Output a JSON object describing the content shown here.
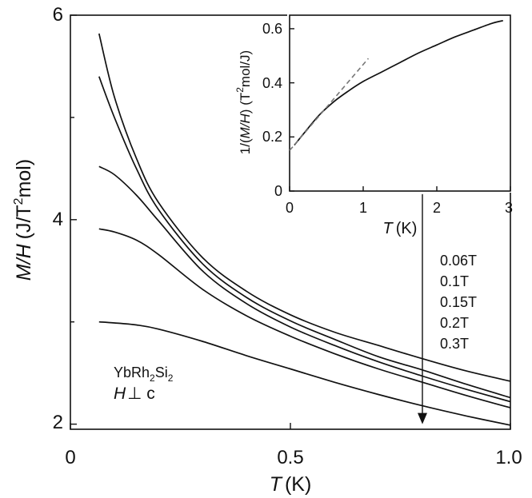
{
  "chart_data": [
    {
      "type": "line",
      "name": "main",
      "xlabel_italic": "T",
      "xlabel_unit": "(K)",
      "ylabel_italic": "M/H",
      "ylabel_unit_pre": "(J/T",
      "ylabel_sup": "2",
      "ylabel_unit_post": "mol)",
      "xlim": [
        0,
        1.0
      ],
      "ylim": [
        1.95,
        6.0
      ],
      "x_ticks": [
        0,
        0.5,
        1.0
      ],
      "x_tick_labels": [
        "0",
        "0.5",
        "1.0"
      ],
      "y_ticks": [
        2,
        4,
        6
      ],
      "y_tick_labels": [
        "2",
        "4",
        "6"
      ],
      "y_minor_ticks": [
        3,
        5
      ],
      "legend": [
        "0.06T",
        "0.1T",
        "0.15T",
        "0.2T",
        "0.3T"
      ],
      "annotation_compound": {
        "pre": "YbRh",
        "sub1": "2",
        "mid": "Si",
        "sub2": "2"
      },
      "annotation_field": {
        "italic": "H",
        "symbol": "⊥",
        "rest": " c"
      },
      "arrow": {
        "x": 0.8,
        "y_from": 4.25,
        "y_to": 2.0
      },
      "series": [
        {
          "name": "0.06T",
          "x": [
            0.065,
            0.1,
            0.15,
            0.2,
            0.3,
            0.4,
            0.5,
            0.6,
            0.7,
            0.8,
            0.9,
            1.0
          ],
          "y": [
            5.82,
            5.2,
            4.6,
            4.17,
            3.63,
            3.3,
            3.07,
            2.9,
            2.77,
            2.64,
            2.52,
            2.42
          ]
        },
        {
          "name": "0.1T",
          "x": [
            0.065,
            0.1,
            0.15,
            0.2,
            0.3,
            0.4,
            0.5,
            0.6,
            0.7,
            0.8,
            0.9,
            1.0
          ],
          "y": [
            5.4,
            5.0,
            4.5,
            4.1,
            3.57,
            3.24,
            3.01,
            2.83,
            2.66,
            2.53,
            2.39,
            2.26
          ]
        },
        {
          "name": "0.15T",
          "x": [
            0.065,
            0.1,
            0.15,
            0.2,
            0.3,
            0.4,
            0.5,
            0.6,
            0.7,
            0.8,
            0.9,
            1.0
          ],
          "y": [
            4.52,
            4.44,
            4.24,
            3.99,
            3.5,
            3.18,
            2.95,
            2.77,
            2.61,
            2.47,
            2.34,
            2.22
          ]
        },
        {
          "name": "0.2T",
          "x": [
            0.065,
            0.1,
            0.15,
            0.2,
            0.3,
            0.4,
            0.5,
            0.6,
            0.7,
            0.8,
            0.9,
            1.0
          ],
          "y": [
            3.91,
            3.88,
            3.8,
            3.66,
            3.32,
            3.06,
            2.86,
            2.69,
            2.54,
            2.41,
            2.28,
            2.16
          ]
        },
        {
          "name": "0.3T",
          "x": [
            0.065,
            0.1,
            0.15,
            0.2,
            0.3,
            0.4,
            0.5,
            0.6,
            0.7,
            0.8,
            0.9,
            1.0
          ],
          "y": [
            3.0,
            2.99,
            2.97,
            2.93,
            2.81,
            2.67,
            2.54,
            2.41,
            2.29,
            2.18,
            2.08,
            1.99
          ]
        }
      ]
    },
    {
      "type": "line",
      "name": "inset",
      "xlabel_italic": "T",
      "xlabel_unit": "(K)",
      "ylabel_pre": "1/(",
      "ylabel_italic": "M/H",
      "ylabel_mid": ") (T",
      "ylabel_sup": "2",
      "ylabel_post": "mol/J)",
      "xlim": [
        0,
        3.0
      ],
      "ylim": [
        0,
        0.65
      ],
      "x_ticks": [
        0,
        1,
        2,
        3
      ],
      "x_tick_labels": [
        "0",
        "1",
        "2",
        "3"
      ],
      "y_ticks": [
        0,
        0.2,
        0.4,
        0.6
      ],
      "y_tick_labels": [
        "0",
        "0.2",
        "0.4",
        "0.6"
      ],
      "series": [
        {
          "name": "data",
          "style": "solid",
          "x": [
            0.065,
            0.2,
            0.4,
            0.6,
            0.8,
            1.0,
            1.25,
            1.5,
            1.75,
            2.0,
            2.25,
            2.5,
            2.75,
            2.9
          ],
          "y": [
            0.17,
            0.215,
            0.28,
            0.33,
            0.37,
            0.405,
            0.44,
            0.475,
            0.51,
            0.54,
            0.57,
            0.595,
            0.62,
            0.63
          ]
        },
        {
          "name": "linear-fit",
          "style": "dashed",
          "x": [
            0.0,
            1.07
          ],
          "y": [
            0.15,
            0.49
          ]
        }
      ]
    }
  ]
}
